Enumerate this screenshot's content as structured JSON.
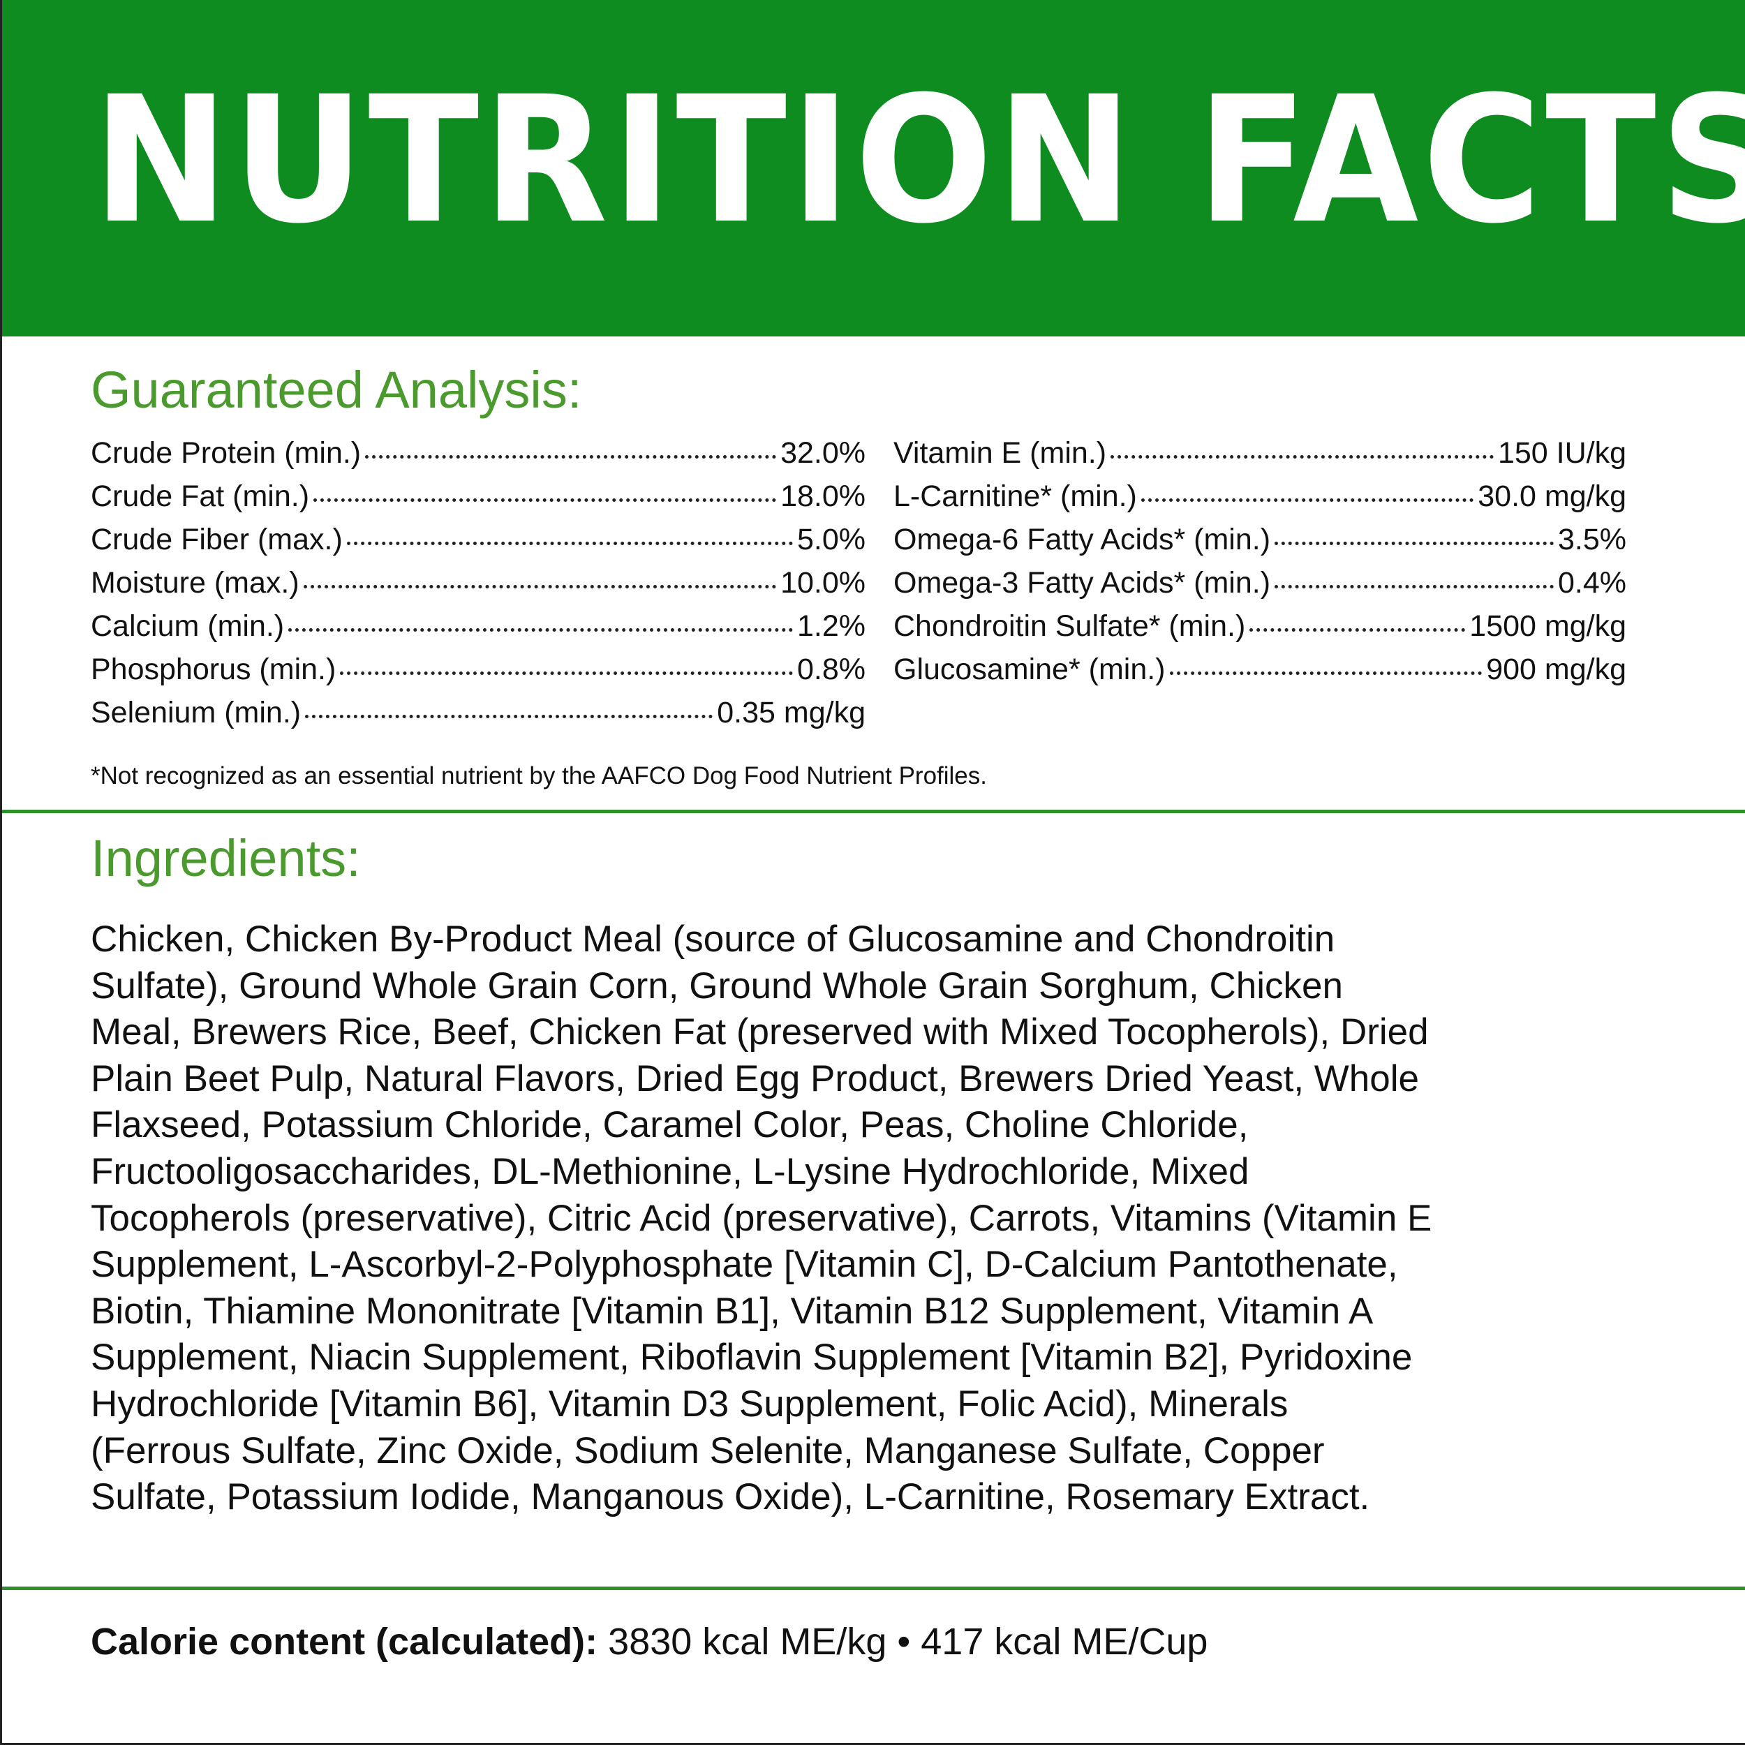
{
  "header": {
    "title": "NUTRITION FACTS"
  },
  "guaranteed_analysis": {
    "heading": "Guaranteed Analysis:",
    "left": [
      {
        "label": "Crude Protein (min.)",
        "value": "32.0%"
      },
      {
        "label": "Crude Fat (min.)",
        "value": "18.0%"
      },
      {
        "label": "Crude Fiber (max.)",
        "value": "5.0%"
      },
      {
        "label": "Moisture (max.)",
        "value": "10.0%"
      },
      {
        "label": "Calcium (min.)",
        "value": "1.2%"
      },
      {
        "label": "Phosphorus (min.)",
        "value": "0.8%"
      },
      {
        "label": "Selenium (min.)",
        "value": "0.35 mg/kg"
      }
    ],
    "right": [
      {
        "label": "Vitamin E (min.)",
        "value": "150 IU/kg"
      },
      {
        "label": "L-Carnitine* (min.)",
        "value": "30.0 mg/kg"
      },
      {
        "label": "Omega-6 Fatty Acids* (min.)",
        "value": "3.5%"
      },
      {
        "label": "Omega-3 Fatty Acids* (min.)",
        "value": "0.4%"
      },
      {
        "label": "Chondroitin Sulfate* (min.)",
        "value": "1500 mg/kg"
      },
      {
        "label": "Glucosamine* (min.)",
        "value": "900 mg/kg"
      }
    ],
    "footnote": "*Not recognized as an essential nutrient by the AAFCO Dog Food Nutrient Profiles."
  },
  "ingredients": {
    "heading": "Ingredients:",
    "lines": [
      "Chicken, Chicken By-Product Meal (source of Glucosamine and Chondroitin",
      "Sulfate), Ground Whole Grain Corn, Ground Whole Grain Sorghum, Chicken",
      "Meal, Brewers Rice, Beef, Chicken Fat (preserved with Mixed Tocopherols), Dried",
      "Plain Beet Pulp, Natural Flavors, Dried Egg Product, Brewers Dried Yeast, Whole",
      "Flaxseed, Potassium Chloride, Caramel Color, Peas, Choline Chloride,",
      "Fructooligosaccharides, DL-Methionine, L-Lysine Hydrochloride, Mixed",
      "Tocopherols (preservative), Citric Acid (preservative), Carrots, Vitamins (Vitamin E",
      "Supplement, L-Ascorbyl-2-Polyphosphate [Vitamin C], D-Calcium Pantothenate,",
      "Biotin, Thiamine Mononitrate [Vitamin B1],  Vitamin B12 Supplement, Vitamin A",
      "Supplement, Niacin Supplement, Riboflavin Supplement [Vitamin B2], Pyridoxine",
      "Hydrochloride [Vitamin B6], Vitamin D3 Supplement, Folic Acid), Minerals",
      "(Ferrous Sulfate, Zinc Oxide, Sodium Selenite, Manganese Sulfate, Copper",
      "Sulfate, Potassium Iodide, Manganous Oxide), L-Carnitine, Rosemary Extract."
    ]
  },
  "calories": {
    "label": "Calorie content (calculated):",
    "value": "3830 kcal ME/kg • 417 kcal ME/Cup"
  }
}
